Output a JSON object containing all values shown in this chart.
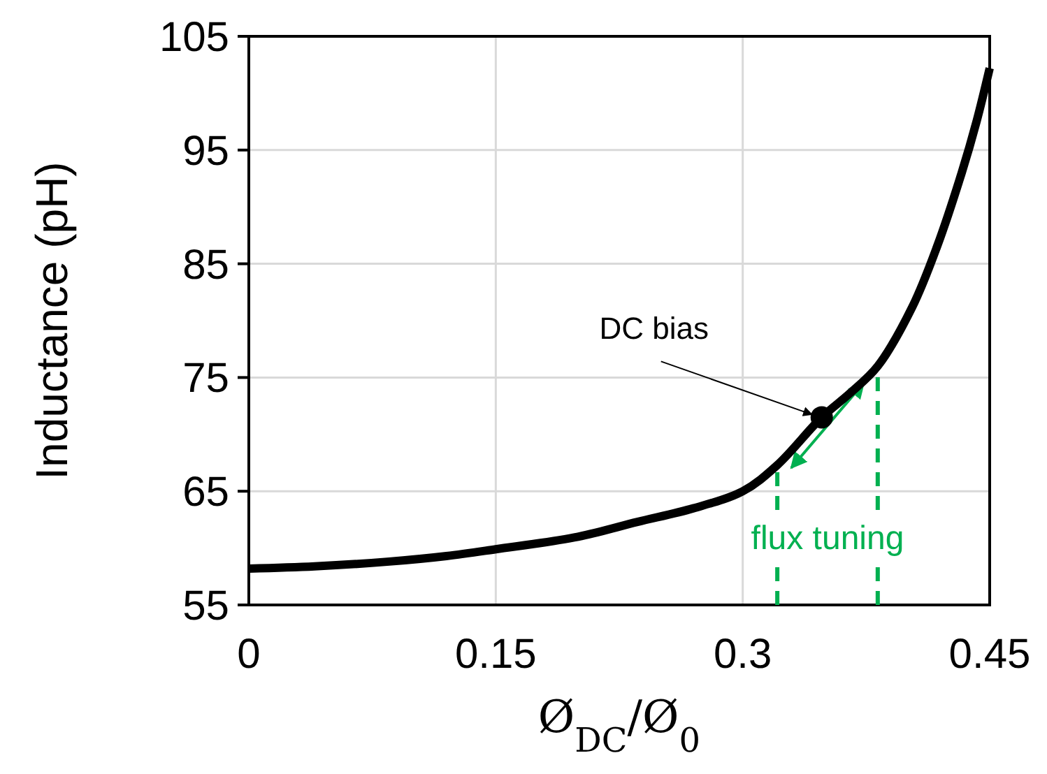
{
  "chart_data": {
    "type": "line",
    "xlabel": "Ø$_{DC}$/Ø$_{0}$",
    "ylabel": "Inductance (pH)",
    "xlim": [
      0,
      0.45
    ],
    "ylim": [
      55,
      105
    ],
    "xticks": [
      0,
      0.15,
      0.3,
      0.45
    ],
    "yticks": [
      55,
      65,
      75,
      85,
      95,
      105
    ],
    "grid": true,
    "marker": "none",
    "line_style": "solid",
    "series": [
      {
        "color": "#000000",
        "x": [
          0,
          0.04,
          0.084,
          0.12,
          0.15,
          0.2,
          0.236,
          0.27,
          0.3,
          0.321,
          0.348,
          0.365,
          0.382,
          0.403,
          0.418,
          0.433,
          0.442,
          0.45
        ],
        "values": [
          58.2,
          58.4,
          58.8,
          59.3,
          59.9,
          61.0,
          62.3,
          63.5,
          65.0,
          67.3,
          71.5,
          73.6,
          76.0,
          81.2,
          86.5,
          93.0,
          97.5,
          102.2
        ]
      },
      {
        "type": "scatter",
        "marker": "circle",
        "color": "#000000",
        "x": [
          0.348
        ],
        "values": [
          71.5
        ]
      }
    ],
    "ref_lines": [
      {
        "axis": "x",
        "value": 0.321,
        "color": "#00b050",
        "line_style": "dashed"
      },
      {
        "axis": "x",
        "value": 0.382,
        "color": "#00b050",
        "line_style": "dashed"
      }
    ],
    "annotations": [
      {
        "text": "DC bias",
        "x": 0.348,
        "y": 71.5
      },
      "flux tuning"
    ]
  }
}
